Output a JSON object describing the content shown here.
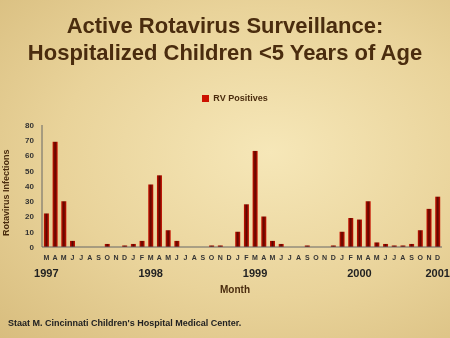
{
  "chart_data": {
    "type": "bar",
    "title": "Active Rotavirus Surveillance:",
    "subtitle": "Hospitalized Children <5 Years of Age",
    "x_label": "Month",
    "y_label": "Rotavirus Infections",
    "source": "Staat M. Cincinnati Children's Hospital Medical Center.",
    "categories": [
      "M",
      "A",
      "M",
      "J",
      "J",
      "A",
      "S",
      "O",
      "N",
      "D",
      "J",
      "F",
      "M",
      "A",
      "M",
      "J",
      "J",
      "A",
      "S",
      "O",
      "N",
      "D",
      "J",
      "F",
      "M",
      "A",
      "M",
      "J",
      "J",
      "A",
      "S",
      "O",
      "N",
      "D",
      "J",
      "F",
      "M",
      "A",
      "M",
      "J",
      "J",
      "A",
      "S",
      "O",
      "N",
      "D"
    ],
    "year_labels": [
      "1997",
      null,
      null,
      null,
      null,
      null,
      null,
      null,
      null,
      null,
      null,
      null,
      "1998",
      null,
      null,
      null,
      null,
      null,
      null,
      null,
      null,
      null,
      null,
      null,
      "1999",
      null,
      null,
      null,
      null,
      null,
      null,
      null,
      null,
      null,
      null,
      null,
      "2000",
      null,
      null,
      null,
      null,
      null,
      null,
      null,
      null,
      "2001"
    ],
    "series": [
      {
        "name": "RV Positives",
        "color": "#cc1100",
        "values": [
          22,
          69,
          30,
          4,
          0,
          0,
          0,
          2,
          0,
          1,
          2,
          4,
          41,
          47,
          11,
          4,
          0,
          0,
          0,
          1,
          1,
          0,
          10,
          28,
          63,
          20,
          4,
          2,
          0,
          0,
          1,
          0,
          0,
          1,
          10,
          19,
          18,
          30,
          3,
          2,
          1,
          1,
          2,
          11,
          25,
          33
        ]
      }
    ],
    "ylim": [
      0,
      80
    ],
    "yticks": [
      0,
      10,
      20,
      30,
      40,
      50,
      60,
      70,
      80
    ],
    "grid": false,
    "legend": "top"
  }
}
